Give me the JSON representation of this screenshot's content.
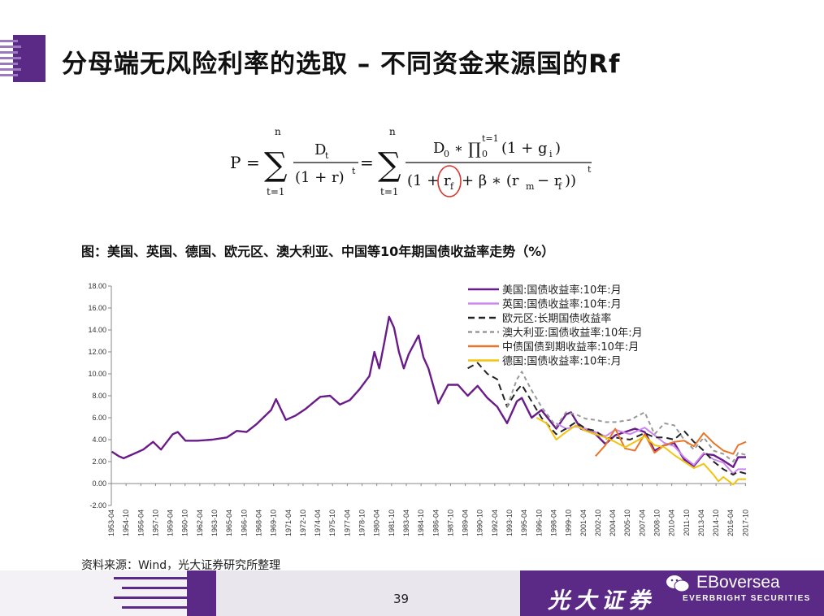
{
  "title": "分母端无风险利率的选取 – 不同资金来源国的Rf",
  "caption": "图：美国、英国、德国、欧元区、澳大利亚、中国等10年期国债收益率走势（%）",
  "source": "资料来源：Wind，光大证券研究所整理",
  "page_number": "39",
  "brand": {
    "cn": "光大证券",
    "en": "EBoversea",
    "sub": "EVERBRIGHT SECURITIES"
  },
  "formula": {
    "lhs": "P",
    "eq": "=",
    "sum_top": "n",
    "sum_bottom": "t=1",
    "num1": "D",
    "num1_sub": "t",
    "den1": "(1 + r)",
    "den1_sup": "t",
    "num2_prefix": "D",
    "num2_prefix_sub": "0",
    "num2_op": "∗",
    "prod_sup": "t=1",
    "prod_sub": "0",
    "num2_rest": "(1 + g",
    "num2_rest_sub": "i",
    "num2_close": ")",
    "den2_open": "(1 +",
    "den2_r": "r",
    "den2_r_sub": "f",
    "den2_mid": "+ β ∗ (r",
    "den2_m_sub": "m",
    "den2_minus": "− r",
    "den2_f_sub": "f",
    "den2_close": "))",
    "den2_sup": "t"
  },
  "colors": {
    "us": "#6a1b8a",
    "uk": "#cc88ee",
    "eu": "#222222",
    "au": "#999999",
    "cn": "#e8762b",
    "de": "#f2c40f",
    "accent": "#5b2a86",
    "circle": "#d9342b"
  },
  "chart_data": {
    "type": "line",
    "title": "",
    "xlabel": "",
    "ylabel": "",
    "ylim": [
      -2,
      18
    ],
    "yticks": [
      "18.00",
      "16.00",
      "14.00",
      "12.00",
      "10.00",
      "8.00",
      "6.00",
      "4.00",
      "2.00",
      "0.00",
      "-2.00"
    ],
    "xticks": [
      "1953-04",
      "1954-10",
      "1956-04",
      "1957-10",
      "1959-04",
      "1960-10",
      "1962-04",
      "1963-10",
      "1965-04",
      "1966-10",
      "1968-04",
      "1969-10",
      "1971-04",
      "1972-10",
      "1974-04",
      "1975-10",
      "1977-04",
      "1978-10",
      "1980-04",
      "1981-10",
      "1983-04",
      "1984-10",
      "1986-04",
      "1987-10",
      "1989-04",
      "1990-10",
      "1992-04",
      "1993-10",
      "1995-04",
      "1996-10",
      "1998-04",
      "1999-10",
      "2001-04",
      "2002-10",
      "2004-04",
      "2005-10",
      "2007-04",
      "2008-10",
      "2010-04",
      "2011-10",
      "2013-04",
      "2014-10",
      "2016-04",
      "2017-10"
    ],
    "legend_position": "top-right",
    "series": [
      {
        "name": "美国:国债收益率:10年:月",
        "key": "us",
        "dash": "solid",
        "points": [
          [
            1953.3,
            2.9
          ],
          [
            1954.0,
            2.5
          ],
          [
            1954.5,
            2.3
          ],
          [
            1955.5,
            2.7
          ],
          [
            1956.5,
            3.1
          ],
          [
            1957.5,
            3.8
          ],
          [
            1958.3,
            3.1
          ],
          [
            1959.5,
            4.5
          ],
          [
            1960.0,
            4.7
          ],
          [
            1960.8,
            3.9
          ],
          [
            1962.0,
            3.9
          ],
          [
            1963.5,
            4.0
          ],
          [
            1965.0,
            4.2
          ],
          [
            1966.0,
            4.8
          ],
          [
            1967.0,
            4.7
          ],
          [
            1968.0,
            5.4
          ],
          [
            1969.5,
            6.7
          ],
          [
            1970.0,
            7.7
          ],
          [
            1971.0,
            5.8
          ],
          [
            1972.0,
            6.2
          ],
          [
            1973.0,
            6.8
          ],
          [
            1974.5,
            7.9
          ],
          [
            1975.5,
            8.0
          ],
          [
            1976.5,
            7.2
          ],
          [
            1977.5,
            7.6
          ],
          [
            1978.5,
            8.6
          ],
          [
            1979.5,
            9.8
          ],
          [
            1980.0,
            12.0
          ],
          [
            1980.5,
            10.5
          ],
          [
            1981.0,
            12.8
          ],
          [
            1981.5,
            15.2
          ],
          [
            1982.0,
            14.2
          ],
          [
            1982.5,
            12.0
          ],
          [
            1983.0,
            10.5
          ],
          [
            1983.5,
            11.8
          ],
          [
            1984.5,
            13.5
          ],
          [
            1985.0,
            11.5
          ],
          [
            1985.5,
            10.5
          ],
          [
            1986.5,
            7.3
          ],
          [
            1987.5,
            9.0
          ],
          [
            1988.5,
            9.0
          ],
          [
            1989.5,
            8.0
          ],
          [
            1990.5,
            8.9
          ],
          [
            1991.5,
            7.8
          ],
          [
            1992.5,
            7.0
          ],
          [
            1993.5,
            5.5
          ],
          [
            1994.5,
            7.5
          ],
          [
            1995.0,
            7.8
          ],
          [
            1996.0,
            6.0
          ],
          [
            1997.0,
            6.7
          ],
          [
            1998.5,
            5.0
          ],
          [
            1999.5,
            6.3
          ],
          [
            2000.0,
            6.5
          ],
          [
            2001.0,
            5.0
          ],
          [
            2002.5,
            4.5
          ],
          [
            2003.5,
            3.6
          ],
          [
            2004.5,
            4.4
          ],
          [
            2006.5,
            5.0
          ],
          [
            2007.5,
            4.7
          ],
          [
            2008.5,
            3.0
          ],
          [
            2009.5,
            3.5
          ],
          [
            2010.5,
            3.7
          ],
          [
            2011.5,
            2.2
          ],
          [
            2012.5,
            1.6
          ],
          [
            2013.5,
            2.7
          ],
          [
            2014.5,
            2.6
          ],
          [
            2015.5,
            2.1
          ],
          [
            2016.5,
            1.5
          ],
          [
            2017.0,
            2.4
          ],
          [
            2017.8,
            2.4
          ]
        ]
      },
      {
        "name": "英国:国债收益率:10年:月",
        "key": "uk",
        "dash": "solid",
        "points": [
          [
            1998.5,
            5.5
          ],
          [
            1999.5,
            5.0
          ],
          [
            2000.5,
            5.2
          ],
          [
            2001.5,
            5.0
          ],
          [
            2002.5,
            4.7
          ],
          [
            2003.5,
            4.3
          ],
          [
            2004.5,
            4.9
          ],
          [
            2006.0,
            4.5
          ],
          [
            2007.5,
            5.1
          ],
          [
            2008.5,
            4.4
          ],
          [
            2009.5,
            3.7
          ],
          [
            2010.5,
            3.4
          ],
          [
            2011.5,
            2.4
          ],
          [
            2012.5,
            1.7
          ],
          [
            2013.5,
            2.8
          ],
          [
            2014.5,
            2.2
          ],
          [
            2015.5,
            1.9
          ],
          [
            2016.5,
            0.9
          ],
          [
            2017.0,
            1.3
          ],
          [
            2017.8,
            1.3
          ]
        ]
      },
      {
        "name": "欧元区:长期国债收益率",
        "key": "eu",
        "dash": "8,5",
        "points": [
          [
            1989.5,
            10.5
          ],
          [
            1990.5,
            11.0
          ],
          [
            1991.5,
            10.0
          ],
          [
            1992.5,
            9.5
          ],
          [
            1993.5,
            7.0
          ],
          [
            1994.5,
            8.5
          ],
          [
            1995.0,
            9.0
          ],
          [
            1996.0,
            7.5
          ],
          [
            1997.0,
            6.0
          ],
          [
            1998.5,
            4.5
          ],
          [
            1999.5,
            5.0
          ],
          [
            2000.5,
            5.6
          ],
          [
            2001.5,
            5.0
          ],
          [
            2002.5,
            4.8
          ],
          [
            2003.5,
            4.1
          ],
          [
            2004.5,
            4.2
          ],
          [
            2006.0,
            4.0
          ],
          [
            2007.5,
            4.6
          ],
          [
            2008.5,
            4.2
          ],
          [
            2009.5,
            4.2
          ],
          [
            2010.5,
            4.0
          ],
          [
            2011.5,
            4.8
          ],
          [
            2012.5,
            3.8
          ],
          [
            2013.5,
            3.0
          ],
          [
            2014.5,
            2.0
          ],
          [
            2015.5,
            1.3
          ],
          [
            2016.5,
            0.8
          ],
          [
            2017.0,
            1.1
          ],
          [
            2017.8,
            0.9
          ]
        ]
      },
      {
        "name": "澳大利亚:国债收益率:10年:月",
        "key": "au",
        "dash": "5,4",
        "points": [
          [
            1993.5,
            7.0
          ],
          [
            1994.5,
            9.5
          ],
          [
            1995.0,
            10.2
          ],
          [
            1996.0,
            8.5
          ],
          [
            1997.0,
            7.0
          ],
          [
            1998.5,
            5.2
          ],
          [
            1999.5,
            6.5
          ],
          [
            2000.5,
            6.3
          ],
          [
            2001.5,
            5.9
          ],
          [
            2002.5,
            5.8
          ],
          [
            2003.5,
            5.6
          ],
          [
            2004.5,
            5.6
          ],
          [
            2006.0,
            5.8
          ],
          [
            2007.5,
            6.5
          ],
          [
            2008.5,
            4.5
          ],
          [
            2009.5,
            5.5
          ],
          [
            2010.5,
            5.3
          ],
          [
            2011.5,
            4.0
          ],
          [
            2012.5,
            3.1
          ],
          [
            2013.5,
            4.2
          ],
          [
            2014.5,
            3.0
          ],
          [
            2015.5,
            2.7
          ],
          [
            2016.5,
            2.0
          ],
          [
            2017.0,
            2.8
          ],
          [
            2017.8,
            2.6
          ]
        ]
      },
      {
        "name": "中债国债到期收益率:10年:月",
        "key": "cn",
        "dash": "solid",
        "points": [
          [
            2002.5,
            2.5
          ],
          [
            2003.5,
            3.5
          ],
          [
            2004.5,
            5.0
          ],
          [
            2005.5,
            3.2
          ],
          [
            2006.5,
            3.0
          ],
          [
            2007.5,
            4.5
          ],
          [
            2008.5,
            2.8
          ],
          [
            2009.5,
            3.5
          ],
          [
            2010.5,
            3.8
          ],
          [
            2011.5,
            3.9
          ],
          [
            2012.5,
            3.4
          ],
          [
            2013.5,
            4.6
          ],
          [
            2014.5,
            3.7
          ],
          [
            2015.5,
            3.0
          ],
          [
            2016.5,
            2.7
          ],
          [
            2017.0,
            3.5
          ],
          [
            2017.8,
            3.8
          ]
        ]
      },
      {
        "name": "德国:国债收益率:10年:月",
        "key": "de",
        "dash": "solid",
        "points": [
          [
            1996.5,
            6.0
          ],
          [
            1997.5,
            5.5
          ],
          [
            1998.5,
            4.0
          ],
          [
            1999.5,
            4.7
          ],
          [
            2000.5,
            5.3
          ],
          [
            2001.5,
            4.8
          ],
          [
            2002.5,
            4.5
          ],
          [
            2003.5,
            4.2
          ],
          [
            2004.5,
            3.8
          ],
          [
            2005.5,
            3.3
          ],
          [
            2006.5,
            3.8
          ],
          [
            2007.5,
            4.3
          ],
          [
            2008.5,
            3.5
          ],
          [
            2009.5,
            3.3
          ],
          [
            2010.5,
            2.6
          ],
          [
            2011.5,
            2.0
          ],
          [
            2012.5,
            1.4
          ],
          [
            2013.5,
            1.8
          ],
          [
            2014.5,
            0.8
          ],
          [
            2015.0,
            0.2
          ],
          [
            2015.5,
            0.6
          ],
          [
            2016.5,
            -0.1
          ],
          [
            2017.0,
            0.4
          ],
          [
            2017.8,
            0.4
          ]
        ]
      }
    ]
  }
}
